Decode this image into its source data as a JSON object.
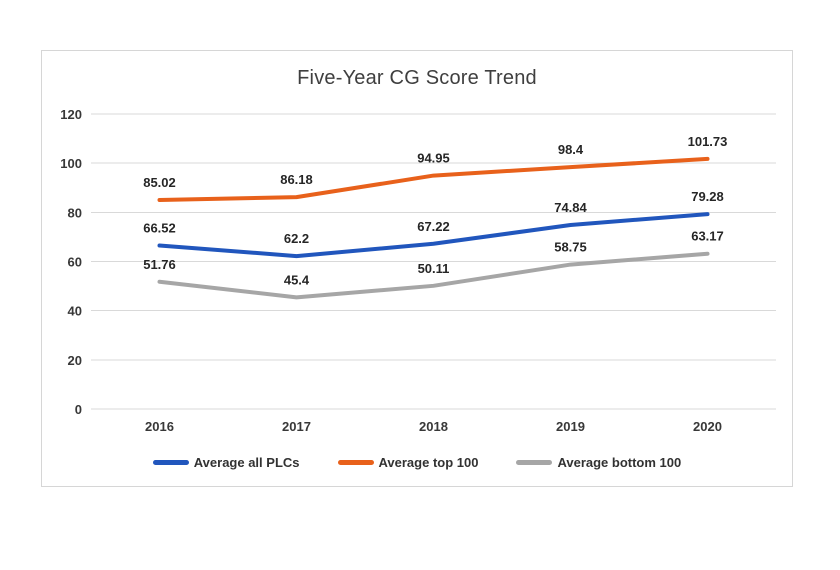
{
  "chart_data": {
    "type": "line",
    "title": "Five-Year CG Score Trend",
    "categories": [
      "2016",
      "2017",
      "2018",
      "2019",
      "2020"
    ],
    "series": [
      {
        "name": "Average all PLCs",
        "color": "#2156bd",
        "values": [
          66.52,
          62.2,
          67.22,
          74.84,
          79.28
        ],
        "labels": [
          "66.52",
          "62.2",
          "67.22",
          "74.84",
          "79.28"
        ]
      },
      {
        "name": "Average top 100",
        "color": "#e8611b",
        "values": [
          85.02,
          86.18,
          94.95,
          98.4,
          101.73
        ],
        "labels": [
          "85.02",
          "86.18",
          "94.95",
          "98.4",
          "101.73"
        ]
      },
      {
        "name": "Average bottom 100",
        "color": "#a6a6a6",
        "values": [
          51.76,
          45.4,
          50.11,
          58.75,
          63.17
        ],
        "labels": [
          "51.76",
          "45.4",
          "50.11",
          "58.75",
          "63.17"
        ]
      }
    ],
    "y_axis": {
      "min": 0,
      "max": 120,
      "step": 20,
      "ticks": [
        "0",
        "20",
        "40",
        "60",
        "80",
        "100",
        "120"
      ]
    },
    "xlabel": "",
    "ylabel": "",
    "grid": true,
    "legend_position": "bottom",
    "colors": {
      "gridline": "#d9d9d9",
      "card_border": "#d6d6d6",
      "title_text": "#3f3f3f",
      "data_label_text": "#262626",
      "tick_text": "#383838",
      "legend_text": "#323232"
    }
  }
}
